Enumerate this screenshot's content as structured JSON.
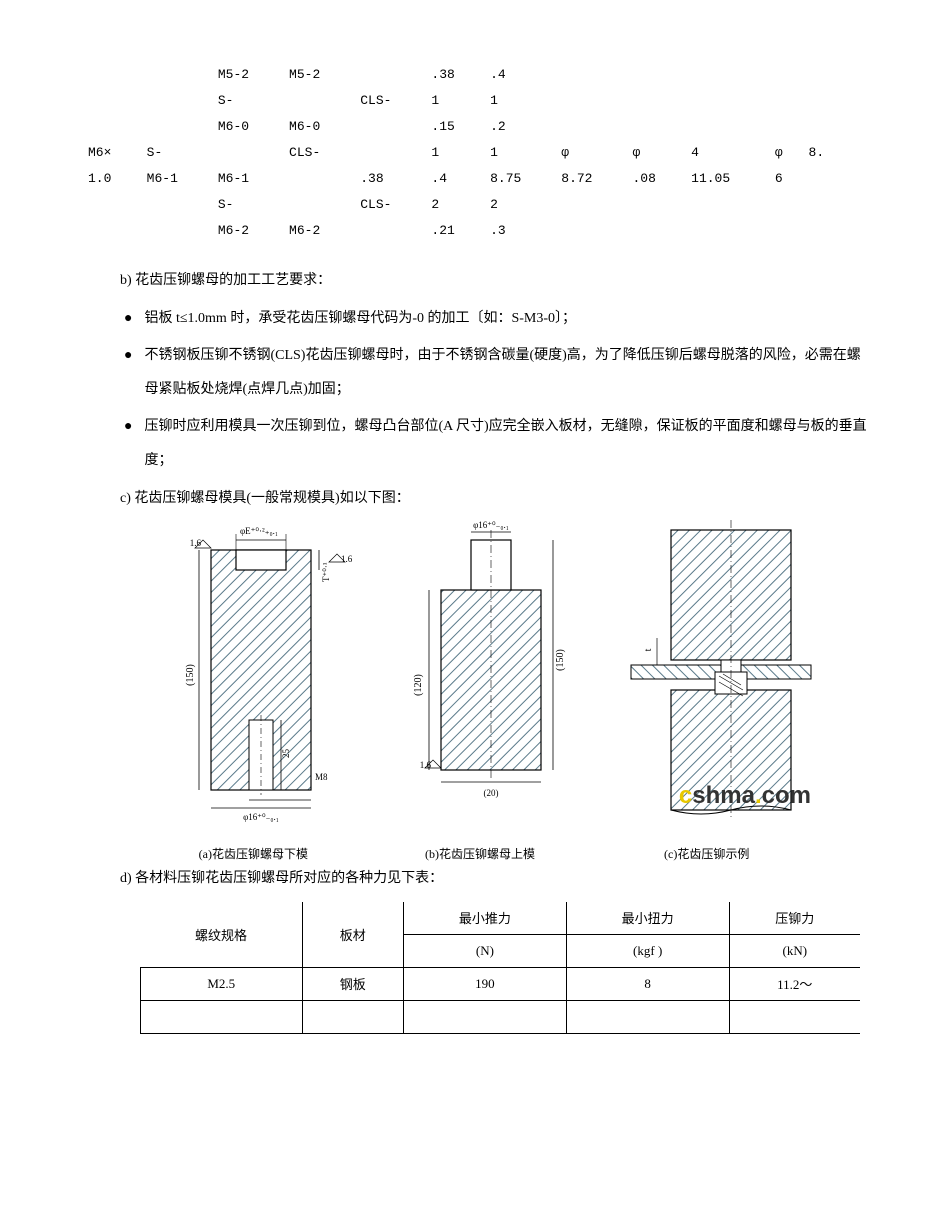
{
  "top_rows": [
    [
      "",
      "",
      "M5-2",
      "M5-2",
      "",
      ".38",
      ".4",
      "",
      "",
      "",
      "",
      "",
      ""
    ],
    [
      "",
      "",
      "S-",
      "",
      "CLS-",
      "1",
      "1",
      "",
      "",
      "",
      "",
      "",
      ""
    ],
    [
      "",
      "",
      "M6-0",
      "M6-0",
      "",
      ".15",
      ".2",
      "",
      "",
      "",
      "",
      "",
      ""
    ],
    [
      "M6×",
      "S-",
      "",
      "CLS-",
      "",
      "1",
      "1",
      "φ",
      "φ",
      "4",
      "φ",
      "8.",
      ""
    ],
    [
      "1.0",
      "M6-1",
      "M6-1",
      "",
      ".38",
      ".4",
      "8.75",
      "8.72",
      ".08",
      "11.05",
      "6",
      "",
      ""
    ],
    [
      "",
      "",
      "S-",
      "",
      "CLS-",
      "2",
      "2",
      "",
      "",
      "",
      "",
      "",
      ""
    ],
    [
      "",
      "",
      "M6-2",
      "M6-2",
      "",
      ".21",
      ".3",
      "",
      "",
      "",
      "",
      "",
      ""
    ]
  ],
  "sections": {
    "b_label": "b)  花齿压铆螺母的加工工艺要求：",
    "b_bullets": [
      "铝板 t≤1.0mm 时，承受花齿压铆螺母代码为-0 的加工〔如：S-M3-0〕；",
      "不锈钢板压铆不锈钢(CLS)花齿压铆螺母时，由于不锈钢含碳量(硬度)高，为了降低压铆后螺母脱落的风险，必需在螺母紧贴板处烧焊(点焊几点)加固；",
      "压铆时应利用模具一次压铆到位，螺母凸台部位(A 尺寸)应完全嵌入板材，无缝隙，保证板的平面度和螺母与板的垂直度；"
    ],
    "c_label": "c)  花齿压铆螺母模具(一般常规模具)如以下图：",
    "d_label": "d)  各材料压铆花齿压铆螺母所对应的各种力见下表："
  },
  "diagram": {
    "dim_E": "φE⁺⁰·²₊₀.₁",
    "dim_16a": "φ16⁺⁰₋₀.₁",
    "dim_16b": "φ16⁺⁰₋₀.₁",
    "dim_150a": "(150)",
    "dim_150b": "(150)",
    "dim_120": "(120)",
    "dim_25": "25",
    "dim_20": "(20)",
    "dim_T": "T⁺⁰·¹",
    "dim_t": "t",
    "dim_M8": "M8",
    "surf_a": "1.6",
    "surf_b": "1.6",
    "surf_c": "1.6",
    "caption_a": "(a)花齿压铆螺母下模",
    "caption_b": "(b)花齿压铆螺母上模",
    "caption_c": "(c)花齿压铆示例",
    "watermark": "cshma.com",
    "hatch_color": "#5a7a8a",
    "line_color": "#000000"
  },
  "force_table": {
    "headers": {
      "spec": "螺纹规格",
      "material": "板材",
      "push": "最小推力",
      "push_unit": "(N)",
      "torque": "最小扭力",
      "torque_unit": "(kgf  )",
      "force": "压铆力",
      "force_unit": "(kN)"
    },
    "row1": {
      "spec": "M2.5",
      "material": "钢板",
      "push": "190",
      "torque": "8",
      "force": "11.2～"
    }
  }
}
